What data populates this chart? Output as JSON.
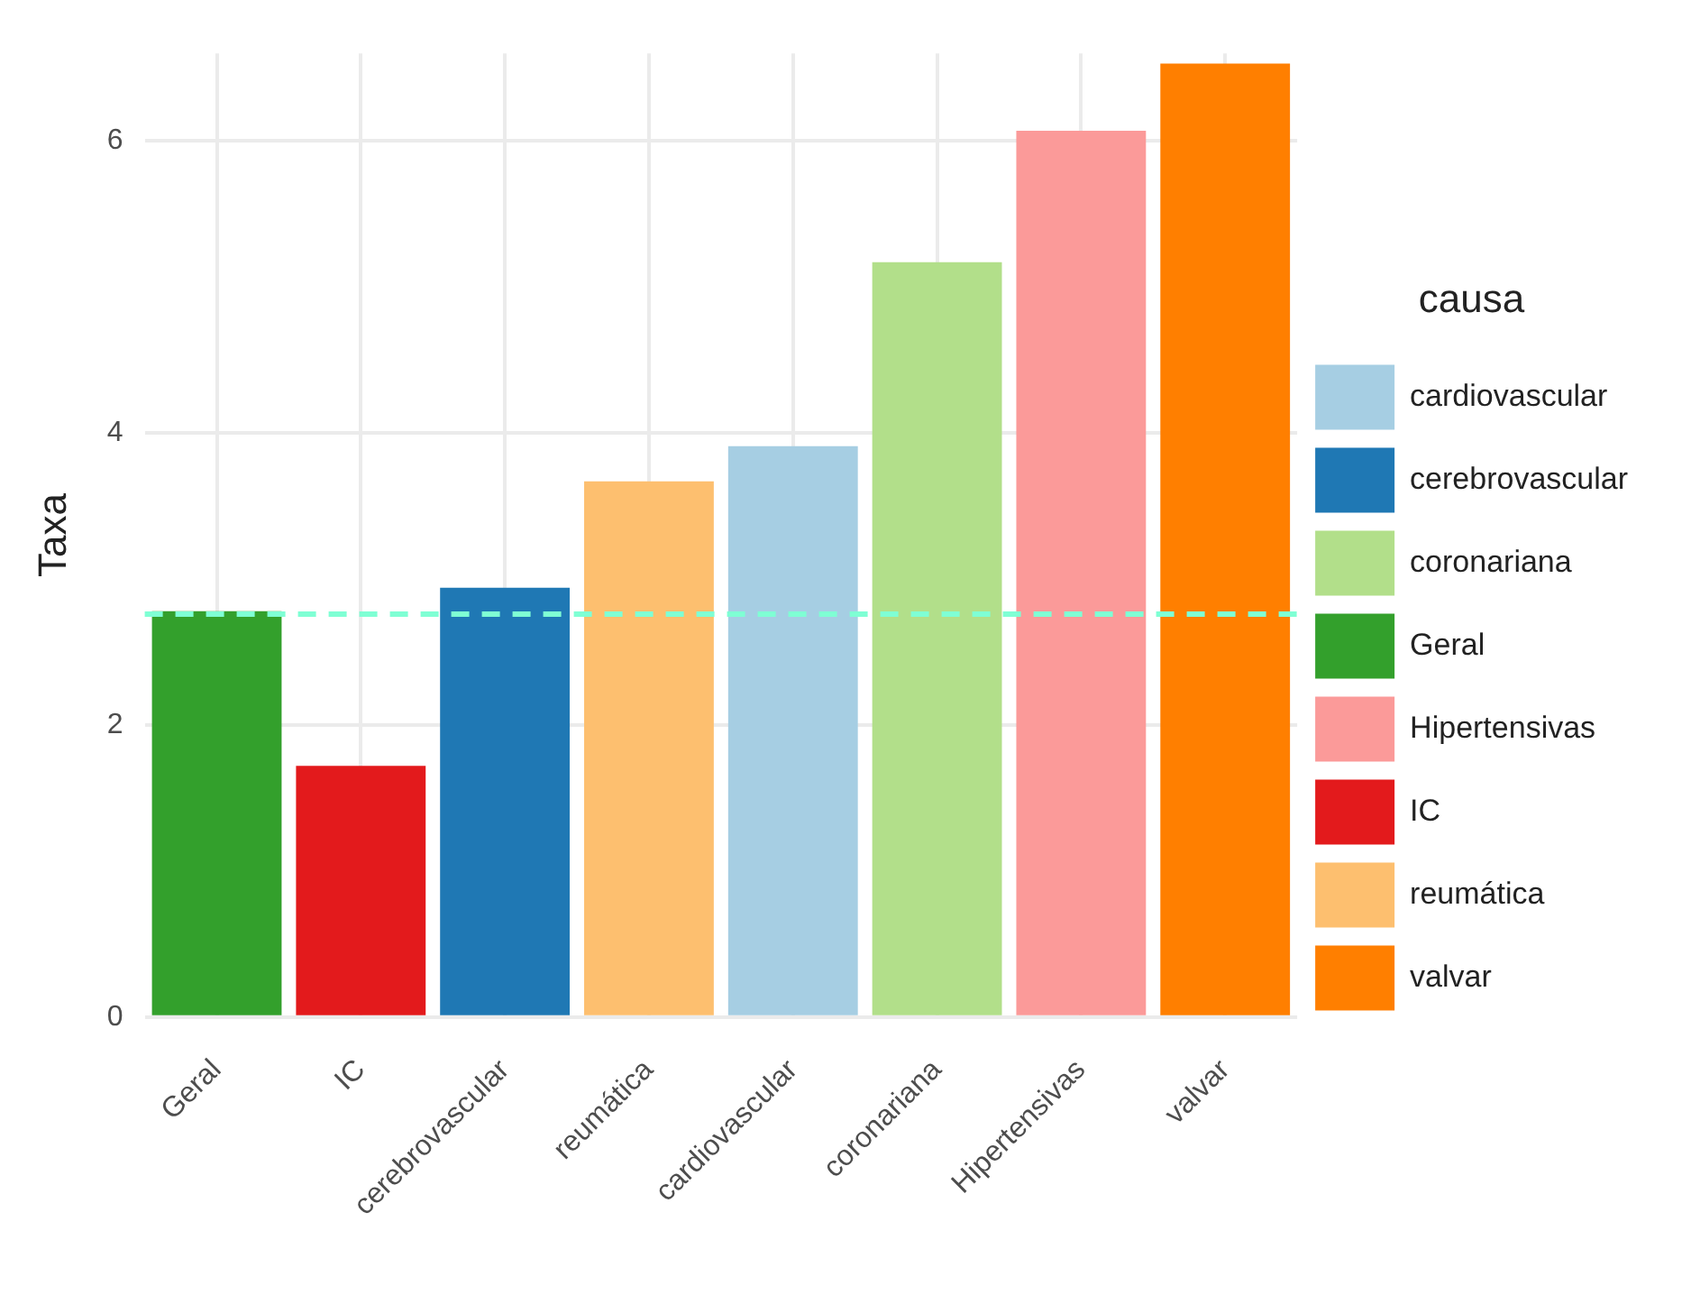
{
  "chart_data": {
    "type": "bar",
    "ylabel": "Taxa",
    "legend_title": "causa",
    "legend": "right",
    "grid": true,
    "categories": [
      "Geral",
      "IC",
      "cerebrovascular",
      "reumática",
      "cardiovascular",
      "coronariana",
      "Hipertensivas",
      "valvar"
    ],
    "ylim": [
      0,
      6.6
    ],
    "yticks": [
      0,
      2,
      4,
      6
    ],
    "series": [
      {
        "name": "cardiovascular",
        "color": "#a6cee3",
        "values": [
          null,
          null,
          null,
          null,
          3.91,
          null,
          null,
          null
        ]
      },
      {
        "name": "cerebrovascular",
        "color": "#1f78b4",
        "values": [
          null,
          null,
          2.94,
          null,
          null,
          null,
          null,
          null
        ]
      },
      {
        "name": "coronariana",
        "color": "#b2df8a",
        "values": [
          null,
          null,
          null,
          null,
          null,
          5.17,
          null,
          null
        ]
      },
      {
        "name": "Geral",
        "color": "#33a02c",
        "values": [
          2.78,
          null,
          null,
          null,
          null,
          null,
          null,
          null
        ]
      },
      {
        "name": "Hipertensivas",
        "color": "#fb9a99",
        "values": [
          null,
          null,
          null,
          null,
          null,
          null,
          6.07,
          null
        ]
      },
      {
        "name": "IC",
        "color": "#e31a1c",
        "values": [
          null,
          1.72,
          null,
          null,
          null,
          null,
          null,
          null
        ]
      },
      {
        "name": "reumática",
        "color": "#fdbf6f",
        "values": [
          null,
          null,
          null,
          3.67,
          null,
          null,
          null,
          null
        ]
      },
      {
        "name": "valvar",
        "color": "#ff7f00",
        "values": [
          null,
          null,
          null,
          null,
          null,
          null,
          null,
          6.53
        ]
      }
    ],
    "ref_lines": [
      {
        "axis": "y",
        "value": 2.76,
        "color": "#7fffd4",
        "line_style": "dashed"
      }
    ]
  }
}
